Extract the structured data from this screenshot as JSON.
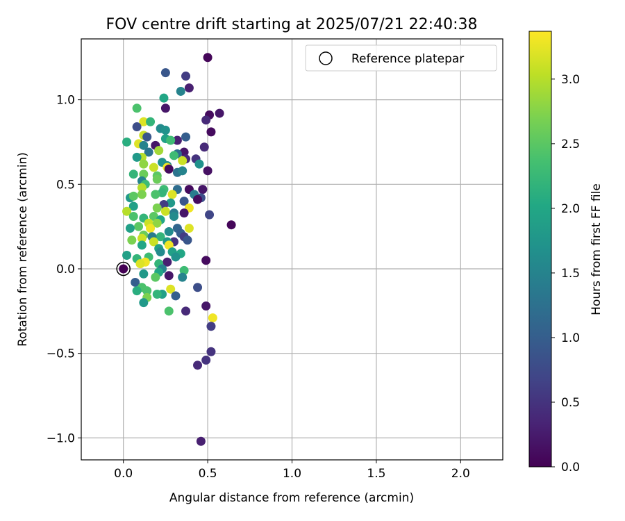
{
  "chart_data": {
    "type": "scatter",
    "title": "FOV centre drift starting at 2025/07/21 22:40:38",
    "xlabel": "Angular distance from reference (arcmin)",
    "ylabel": "Rotation from reference (arcmin)",
    "xlim": [
      -0.25,
      2.25
    ],
    "ylim": [
      -1.13,
      1.36
    ],
    "xticks": [
      0.0,
      0.5,
      1.0,
      1.5,
      2.0
    ],
    "xtick_labels": [
      "0.0",
      "0.5",
      "1.0",
      "1.5",
      "2.0"
    ],
    "yticks": [
      -1.0,
      -0.5,
      0.0,
      0.5,
      1.0
    ],
    "ytick_labels": [
      "−1.0",
      "−0.5",
      "0.0",
      "0.5",
      "1.0"
    ],
    "grid": true,
    "legend": {
      "position": "top-right",
      "entries": [
        "Reference platepar"
      ]
    },
    "colorbar": {
      "label": "Hours from first FF file",
      "colormap": "viridis",
      "range": [
        0.0,
        3.37
      ],
      "ticks": [
        0.0,
        0.5,
        1.0,
        1.5,
        2.0,
        2.5,
        3.0
      ],
      "tick_labels": [
        "0.0",
        "0.5",
        "1.0",
        "1.5",
        "2.0",
        "2.5",
        "3.0"
      ]
    },
    "reference_point": {
      "x": 0.0,
      "y": 0.0,
      "marker": "open-circle"
    },
    "points": [
      [
        0.5,
        1.25,
        0.05
      ],
      [
        0.25,
        1.16,
        0.9
      ],
      [
        0.37,
        1.14,
        0.6
      ],
      [
        0.39,
        1.07,
        0.3
      ],
      [
        0.34,
        1.05,
        1.5
      ],
      [
        0.24,
        1.01,
        2.0
      ],
      [
        0.08,
        0.95,
        2.4
      ],
      [
        0.25,
        0.95,
        0.2
      ],
      [
        0.57,
        0.92,
        0.2
      ],
      [
        0.51,
        0.91,
        0.1
      ],
      [
        0.49,
        0.88,
        0.4
      ],
      [
        0.12,
        0.87,
        3.2
      ],
      [
        0.16,
        0.87,
        2.2
      ],
      [
        0.08,
        0.84,
        0.8
      ],
      [
        0.22,
        0.83,
        1.6
      ],
      [
        0.25,
        0.82,
        1.7
      ],
      [
        0.52,
        0.81,
        0.1
      ],
      [
        0.12,
        0.79,
        3.1
      ],
      [
        0.14,
        0.78,
        0.9
      ],
      [
        0.37,
        0.78,
        1.0
      ],
      [
        0.25,
        0.77,
        1.9
      ],
      [
        0.32,
        0.76,
        0.3
      ],
      [
        0.28,
        0.76,
        2.3
      ],
      [
        0.02,
        0.75,
        2.1
      ],
      [
        0.09,
        0.74,
        3.2
      ],
      [
        0.12,
        0.73,
        1.5
      ],
      [
        0.19,
        0.73,
        0.2
      ],
      [
        0.48,
        0.72,
        0.4
      ],
      [
        0.21,
        0.7,
        2.9
      ],
      [
        0.15,
        0.69,
        1.3
      ],
      [
        0.36,
        0.69,
        0.2
      ],
      [
        0.32,
        0.68,
        1.2
      ],
      [
        0.3,
        0.67,
        2.3
      ],
      [
        0.11,
        0.66,
        3.0
      ],
      [
        0.08,
        0.66,
        1.8
      ],
      [
        0.37,
        0.65,
        0.4
      ],
      [
        0.43,
        0.65,
        0.5
      ],
      [
        0.35,
        0.64,
        3.1
      ],
      [
        0.23,
        0.63,
        1.7
      ],
      [
        0.12,
        0.62,
        2.8
      ],
      [
        0.45,
        0.62,
        1.7
      ],
      [
        0.26,
        0.61,
        1.6
      ],
      [
        0.26,
        0.6,
        3.3
      ],
      [
        0.18,
        0.6,
        3.1
      ],
      [
        0.06,
        0.56,
        2.2
      ],
      [
        0.27,
        0.59,
        0.1
      ],
      [
        0.32,
        0.57,
        1.3
      ],
      [
        0.5,
        0.58,
        0.15
      ],
      [
        0.35,
        0.58,
        1.5
      ],
      [
        0.12,
        0.56,
        2.6
      ],
      [
        0.2,
        0.55,
        2.5
      ],
      [
        0.2,
        0.53,
        2.6
      ],
      [
        0.11,
        0.52,
        1.5
      ],
      [
        0.13,
        0.5,
        2.3
      ],
      [
        0.11,
        0.48,
        3.0
      ],
      [
        0.24,
        0.47,
        2.3
      ],
      [
        0.32,
        0.47,
        1.2
      ],
      [
        0.39,
        0.47,
        0.1
      ],
      [
        0.47,
        0.47,
        0.2
      ],
      [
        0.23,
        0.45,
        2.2
      ],
      [
        0.19,
        0.44,
        2.4
      ],
      [
        0.29,
        0.44,
        3.2
      ],
      [
        0.42,
        0.44,
        1.4
      ],
      [
        0.11,
        0.44,
        2.7
      ],
      [
        0.04,
        0.42,
        1.8
      ],
      [
        0.06,
        0.43,
        2.5
      ],
      [
        0.46,
        0.42,
        0.8
      ],
      [
        0.44,
        0.41,
        0.1
      ],
      [
        0.36,
        0.4,
        0.9
      ],
      [
        0.28,
        0.39,
        1.8
      ],
      [
        0.24,
        0.38,
        0.6
      ],
      [
        0.06,
        0.37,
        1.9
      ],
      [
        0.2,
        0.36,
        2.7
      ],
      [
        0.39,
        0.36,
        3.3
      ],
      [
        0.25,
        0.34,
        3.1
      ],
      [
        0.02,
        0.34,
        3.0
      ],
      [
        0.36,
        0.33,
        0.2
      ],
      [
        0.3,
        0.33,
        1.4
      ],
      [
        0.51,
        0.32,
        0.7
      ],
      [
        0.3,
        0.31,
        1.6
      ],
      [
        0.18,
        0.31,
        2.5
      ],
      [
        0.06,
        0.31,
        2.4
      ],
      [
        0.12,
        0.3,
        2.2
      ],
      [
        0.22,
        0.29,
        2.0
      ],
      [
        0.64,
        0.26,
        0.05
      ],
      [
        0.15,
        0.27,
        3.1
      ],
      [
        0.09,
        0.25,
        2.5
      ],
      [
        0.2,
        0.27,
        2.8
      ],
      [
        0.32,
        0.24,
        1.1
      ],
      [
        0.16,
        0.24,
        3.3
      ],
      [
        0.39,
        0.24,
        3.2
      ],
      [
        0.04,
        0.24,
        1.9
      ],
      [
        0.27,
        0.22,
        1.6
      ],
      [
        0.34,
        0.21,
        1.0
      ],
      [
        0.12,
        0.2,
        2.6
      ],
      [
        0.22,
        0.19,
        2.2
      ],
      [
        0.17,
        0.19,
        1.4
      ],
      [
        0.36,
        0.19,
        0.6
      ],
      [
        0.11,
        0.18,
        3.1
      ],
      [
        0.05,
        0.17,
        2.7
      ],
      [
        0.38,
        0.17,
        0.9
      ],
      [
        0.3,
        0.16,
        0.5
      ],
      [
        0.26,
        0.16,
        1.8
      ],
      [
        0.18,
        0.16,
        3.1
      ],
      [
        0.27,
        0.14,
        3.3
      ],
      [
        0.11,
        0.14,
        2.0
      ],
      [
        0.21,
        0.12,
        1.9
      ],
      [
        0.22,
        0.1,
        1.6
      ],
      [
        0.29,
        0.1,
        1.9
      ],
      [
        0.34,
        0.09,
        2.0
      ],
      [
        0.02,
        0.08,
        1.9
      ],
      [
        0.31,
        0.07,
        1.7
      ],
      [
        0.15,
        0.07,
        2.3
      ],
      [
        0.08,
        0.06,
        2.2
      ],
      [
        0.49,
        0.05,
        0.1
      ],
      [
        0.26,
        0.04,
        0.3
      ],
      [
        0.13,
        0.04,
        3.3
      ],
      [
        0.21,
        0.03,
        2.2
      ],
      [
        0.1,
        0.03,
        3.2
      ],
      [
        0.23,
        0.0,
        1.5
      ],
      [
        0.36,
        -0.01,
        2.3
      ],
      [
        0.12,
        -0.03,
        1.8
      ],
      [
        0.21,
        -0.02,
        2.0
      ],
      [
        0.27,
        -0.04,
        0.2
      ],
      [
        0.19,
        -0.05,
        2.5
      ],
      [
        0.35,
        -0.05,
        1.5
      ],
      [
        0.07,
        -0.08,
        1.0
      ],
      [
        0.44,
        -0.11,
        0.8
      ],
      [
        0.11,
        -0.11,
        2.4
      ],
      [
        0.28,
        -0.12,
        3.2
      ],
      [
        0.08,
        -0.13,
        2.1
      ],
      [
        0.14,
        -0.13,
        2.4
      ],
      [
        0.23,
        -0.15,
        1.9
      ],
      [
        0.2,
        -0.15,
        2.2
      ],
      [
        0.31,
        -0.16,
        1.0
      ],
      [
        0.14,
        -0.17,
        2.7
      ],
      [
        0.12,
        -0.2,
        1.8
      ],
      [
        0.37,
        -0.25,
        0.4
      ],
      [
        0.27,
        -0.25,
        2.4
      ],
      [
        0.49,
        -0.22,
        0.2
      ],
      [
        0.53,
        -0.29,
        3.3
      ],
      [
        0.52,
        -0.34,
        0.6
      ],
      [
        0.52,
        -0.49,
        0.5
      ],
      [
        0.49,
        -0.54,
        0.5
      ],
      [
        0.44,
        -0.57,
        0.4
      ],
      [
        0.46,
        -1.02,
        0.3
      ]
    ]
  }
}
